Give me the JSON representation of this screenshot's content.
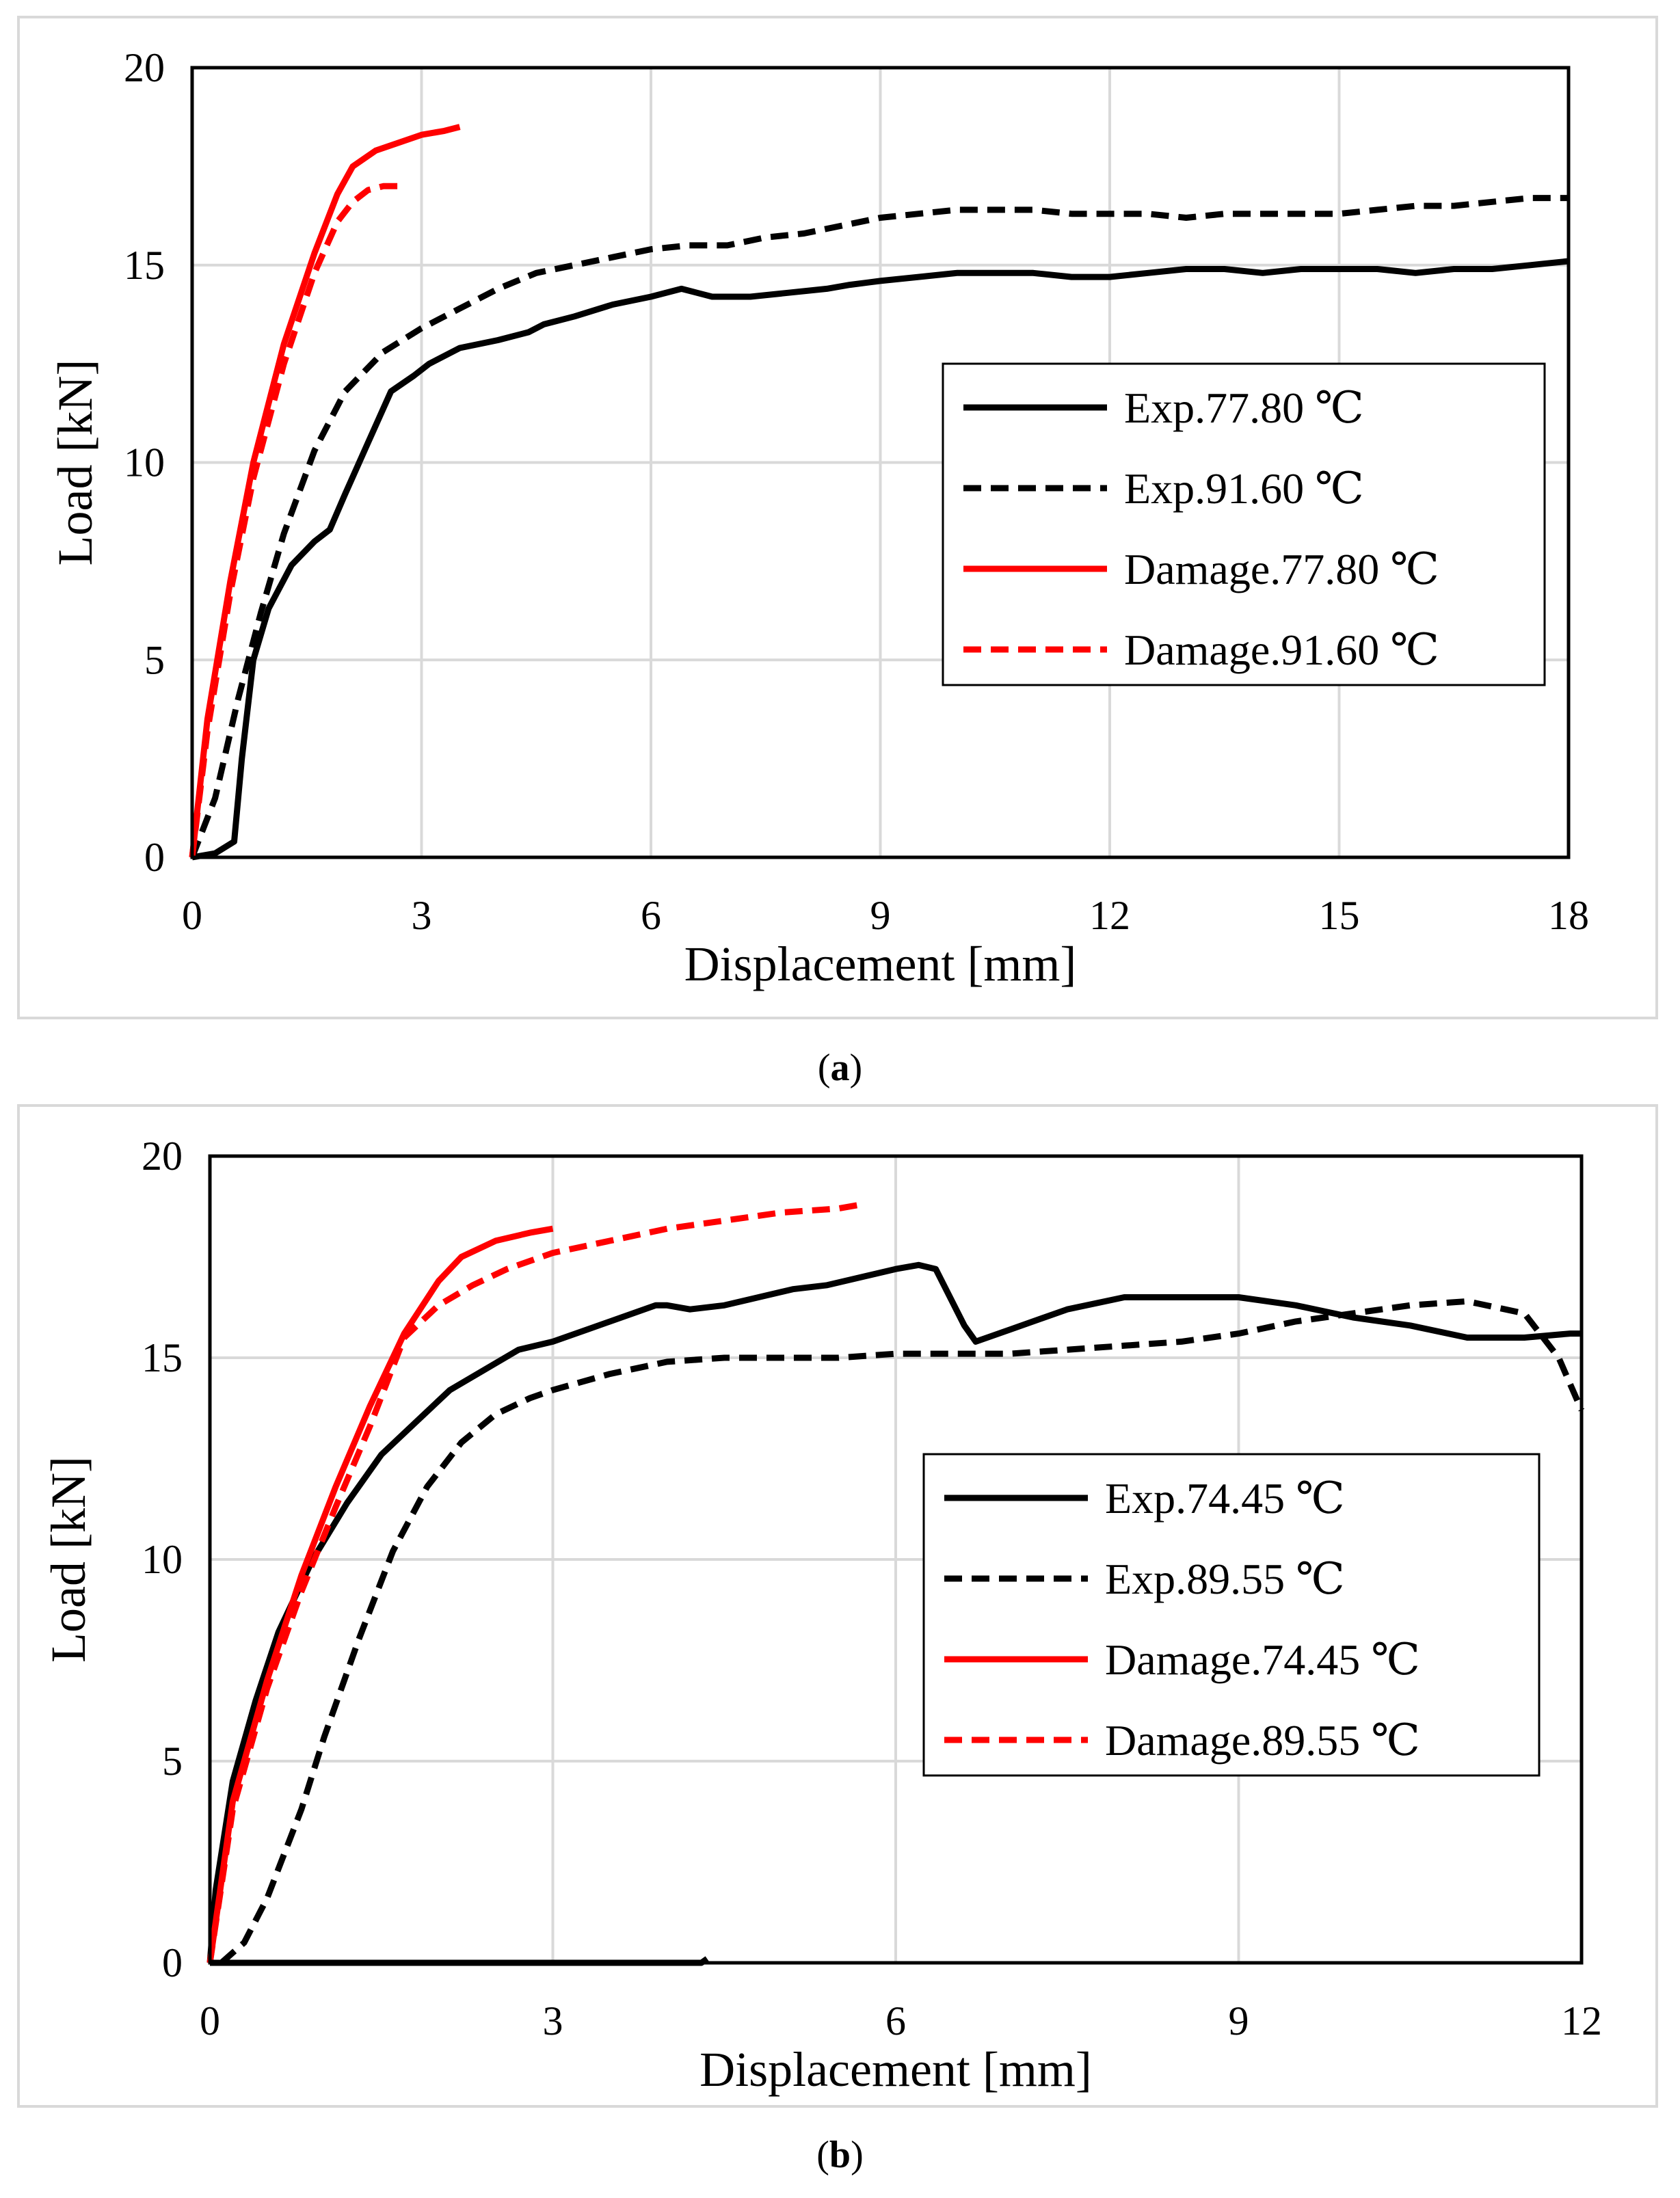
{
  "chart_data": [
    {
      "type": "line",
      "caption_letter": "a",
      "xlabel": "Displacement [mm]",
      "ylabel": "Load [kN]",
      "xlim": [
        0,
        18
      ],
      "ylim": [
        0,
        20
      ],
      "xticks": [
        0,
        3,
        6,
        9,
        12,
        15,
        18
      ],
      "yticks": [
        0,
        5,
        10,
        15,
        20
      ],
      "grid": true,
      "legend_position": "center-right",
      "series": [
        {
          "name": "Exp.77.80 ℃",
          "color": "#000000",
          "dashed": false,
          "x": [
            0,
            0.3,
            0.55,
            0.65,
            0.8,
            1.0,
            1.3,
            1.6,
            1.8,
            2.0,
            2.3,
            2.6,
            2.9,
            3.1,
            3.5,
            4.0,
            4.4,
            4.6,
            5.0,
            5.5,
            6.0,
            6.4,
            6.6,
            6.8,
            7.3,
            7.8,
            8.3,
            8.6,
            9.0,
            9.5,
            10.0,
            10.5,
            11.0,
            11.5,
            12.0,
            12.5,
            13.0,
            13.5,
            14.0,
            14.5,
            15.0,
            15.5,
            16.0,
            16.5,
            17.0,
            17.5,
            18.0
          ],
          "y": [
            0,
            0.1,
            0.4,
            2.5,
            5.0,
            6.3,
            7.4,
            8.0,
            8.3,
            9.2,
            10.5,
            11.8,
            12.2,
            12.5,
            12.9,
            13.1,
            13.3,
            13.5,
            13.7,
            14.0,
            14.2,
            14.4,
            14.3,
            14.2,
            14.2,
            14.3,
            14.4,
            14.5,
            14.6,
            14.7,
            14.8,
            14.8,
            14.8,
            14.7,
            14.7,
            14.8,
            14.9,
            14.9,
            14.8,
            14.9,
            14.9,
            14.9,
            14.8,
            14.9,
            14.9,
            15.0,
            15.1
          ]
        },
        {
          "name": "Exp.91.60 ℃",
          "color": "#000000",
          "dashed": true,
          "x": [
            0,
            0.3,
            0.6,
            0.9,
            1.2,
            1.6,
            2.0,
            2.5,
            3.0,
            3.5,
            4.0,
            4.5,
            5.0,
            5.5,
            6.0,
            6.5,
            7.0,
            7.5,
            8.0,
            8.5,
            9.0,
            9.5,
            10.0,
            10.5,
            11.0,
            11.5,
            12.0,
            12.5,
            13.0,
            13.5,
            14.0,
            14.5,
            15.0,
            15.5,
            16.0,
            16.5,
            17.0,
            17.5,
            18.0
          ],
          "y": [
            0,
            1.5,
            4.0,
            6.2,
            8.2,
            10.3,
            11.8,
            12.8,
            13.4,
            13.9,
            14.4,
            14.8,
            15.0,
            15.2,
            15.4,
            15.5,
            15.5,
            15.7,
            15.8,
            16.0,
            16.2,
            16.3,
            16.4,
            16.4,
            16.4,
            16.3,
            16.3,
            16.3,
            16.2,
            16.3,
            16.3,
            16.3,
            16.3,
            16.4,
            16.5,
            16.5,
            16.6,
            16.7,
            16.7
          ]
        },
        {
          "name": "Damage.77.80 ℃",
          "color": "#ff0000",
          "dashed": false,
          "x": [
            0,
            0.2,
            0.5,
            0.8,
            1.2,
            1.6,
            1.9,
            2.1,
            2.4,
            2.7,
            3.0,
            3.3,
            3.5
          ],
          "y": [
            0,
            3.5,
            7.0,
            10.0,
            13.0,
            15.3,
            16.8,
            17.5,
            17.9,
            18.1,
            18.3,
            18.4,
            18.5
          ]
        },
        {
          "name": "Damage.91.60 ℃",
          "color": "#ff0000",
          "dashed": true,
          "x": [
            0,
            0.2,
            0.5,
            0.8,
            1.2,
            1.6,
            1.9,
            2.1,
            2.3,
            2.5,
            2.8
          ],
          "y": [
            0,
            3.2,
            6.7,
            9.6,
            12.5,
            14.8,
            16.1,
            16.6,
            16.9,
            17.0,
            17.0
          ]
        }
      ]
    },
    {
      "type": "line",
      "caption_letter": "b",
      "xlabel": "Displacement [mm]",
      "ylabel": "Load [kN]",
      "xlim": [
        0,
        12
      ],
      "ylim": [
        0,
        20
      ],
      "xticks": [
        0,
        3,
        6,
        9,
        12
      ],
      "yticks": [
        0,
        5,
        10,
        15,
        20
      ],
      "grid": true,
      "legend_position": "center-right",
      "series": [
        {
          "name": "Exp.74.45 ℃",
          "color": "#000000",
          "dashed": false,
          "x": [
            0,
            0.05,
            0.2,
            0.4,
            0.6,
            0.9,
            1.2,
            1.5,
            1.8,
            2.1,
            2.4,
            2.7,
            3.0,
            3.3,
            3.6,
            3.9,
            4.0,
            4.2,
            4.5,
            4.8,
            5.1,
            5.4,
            5.7,
            6.0,
            6.2,
            6.35,
            6.6,
            6.7,
            7.0,
            7.5,
            8.0,
            8.5,
            9.0,
            9.5,
            10.0,
            10.5,
            11.0,
            11.5,
            11.9,
            12.0
          ],
          "y": [
            0,
            1.8,
            4.5,
            6.5,
            8.2,
            10.0,
            11.4,
            12.6,
            13.4,
            14.2,
            14.7,
            15.2,
            15.4,
            15.7,
            16.0,
            16.3,
            16.3,
            16.2,
            16.3,
            16.5,
            16.7,
            16.8,
            17.0,
            17.2,
            17.3,
            17.2,
            15.8,
            15.4,
            15.7,
            16.2,
            16.5,
            16.5,
            16.5,
            16.3,
            16.0,
            15.8,
            15.5,
            15.5,
            15.6,
            15.6
          ]
        },
        {
          "name": "Exp.89.55 ℃",
          "color": "#000000",
          "dashed": true,
          "x": [
            0.1,
            0.3,
            0.5,
            0.8,
            1.0,
            1.3,
            1.6,
            1.9,
            2.2,
            2.5,
            2.8,
            3.0,
            3.5,
            4.0,
            4.5,
            5.0,
            5.5,
            6.0,
            6.5,
            7.0,
            7.5,
            8.0,
            8.5,
            9.0,
            9.5,
            10.0,
            10.5,
            11.0,
            11.5,
            11.8,
            12.0
          ],
          "y": [
            0,
            0.5,
            1.6,
            3.8,
            5.6,
            8.0,
            10.2,
            11.8,
            12.9,
            13.6,
            14.0,
            14.2,
            14.6,
            14.9,
            15.0,
            15.0,
            15.0,
            15.1,
            15.1,
            15.1,
            15.2,
            15.3,
            15.4,
            15.6,
            15.9,
            16.1,
            16.3,
            16.4,
            16.1,
            15.0,
            13.7
          ]
        },
        {
          "name": "Damage.74.45 ℃",
          "color": "#ff0000",
          "dashed": false,
          "x": [
            0,
            0.2,
            0.5,
            0.8,
            1.1,
            1.4,
            1.7,
            2.0,
            2.2,
            2.5,
            2.8,
            3.0
          ],
          "y": [
            0,
            4.0,
            7.0,
            9.6,
            11.8,
            13.8,
            15.6,
            16.9,
            17.5,
            17.9,
            18.1,
            18.2
          ]
        },
        {
          "name": "Damage.89.55 ℃",
          "color": "#ff0000",
          "dashed": true,
          "x": [
            0,
            0.2,
            0.5,
            0.8,
            1.1,
            1.4,
            1.7,
            2.0,
            2.3,
            2.6,
            3.0,
            3.5,
            4.0,
            4.5,
            5.0,
            5.5,
            5.7
          ],
          "y": [
            0,
            3.8,
            6.8,
            9.2,
            11.3,
            13.3,
            15.5,
            16.3,
            16.8,
            17.2,
            17.6,
            17.9,
            18.2,
            18.4,
            18.6,
            18.7,
            18.8
          ]
        },
        {
          "name": "",
          "color": "#000000",
          "dashed": false,
          "in_legend": false,
          "x": [
            0,
            4.3,
            4.35
          ],
          "y": [
            0,
            0,
            0.1
          ]
        }
      ]
    }
  ]
}
